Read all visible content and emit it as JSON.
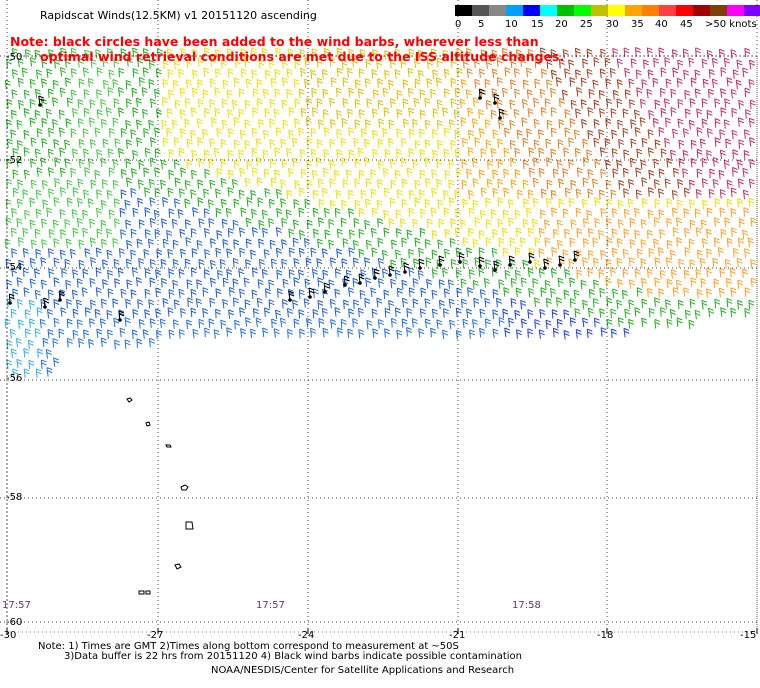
{
  "title": "Rapidscat Winds(12.5KM) v1 20151120 ascending",
  "note_line1": "Note: black circles have been added to the wind barbs, wherever less than",
  "note_line2": "optimal wind retrieval conditions are met due to the ISS altitude changes.",
  "legend": {
    "colors": [
      "#000000",
      "#555555",
      "#888888",
      "#00a0ff",
      "#0000ff",
      "#00ffff",
      "#00c000",
      "#00ff00",
      "#c0c000",
      "#ffff00",
      "#ffa500",
      "#ff8000",
      "#ff4040",
      "#ff0000",
      "#a00000",
      "#804000",
      "#ff00ff",
      "#8000ff",
      "#400080"
    ],
    "labels": [
      "0",
      "5",
      "10",
      "15",
      "20",
      "25",
      "30",
      "35",
      "40",
      "45",
      ">50 knots"
    ]
  },
  "lat_labels": [
    "-50",
    "-52",
    "-54",
    "-56",
    "-58",
    "-60"
  ],
  "lon_labels": [
    "-30",
    "-27",
    "-24",
    "-21",
    "-18",
    "-15"
  ],
  "times": [
    "17:57",
    "17:57",
    "17:58"
  ],
  "footnote_line1": "Note: 1) Times are GMT 2)Times along bottom correspond to measurement at ~50S",
  "footnote_line2": "3)Data buffer is 22 hrs from 20151120 4) Black wind barbs indicate possible contamination",
  "credit": "NOAA/NESDIS/Center for Satellite Applications and Research"
}
